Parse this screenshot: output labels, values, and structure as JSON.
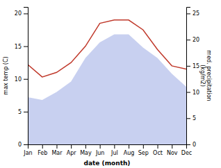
{
  "chart_data": {
    "type": "line",
    "xlabel": "date (month)",
    "ylabel": "max temp (C)",
    "y2label": "med. precipitation\n(kg/m2)",
    "categories": [
      "Jan",
      "Feb",
      "Mar",
      "Apr",
      "May",
      "Jun",
      "Jul",
      "Aug",
      "Sep",
      "Oct",
      "Nov",
      "Dec"
    ],
    "ylim": [
      0,
      21
    ],
    "yticks": [
      0,
      5,
      10,
      15,
      20
    ],
    "y2lim": [
      0,
      26.25
    ],
    "y2ticks": [
      0,
      5,
      10,
      15,
      20,
      25
    ],
    "series": [
      {
        "type": "area",
        "axis": "y2",
        "color": "#c8d0f0",
        "values": [
          9.0,
          8.5,
          10.0,
          12.0,
          16.5,
          19.5,
          21.0,
          21.0,
          18.5,
          16.5,
          13.5,
          11.0
        ]
      },
      {
        "type": "line",
        "color": "#c0392b",
        "values": [
          12.2,
          10.3,
          11.0,
          12.5,
          15.0,
          18.5,
          19.0,
          19.0,
          17.5,
          14.5,
          12.0,
          11.5
        ]
      }
    ]
  }
}
